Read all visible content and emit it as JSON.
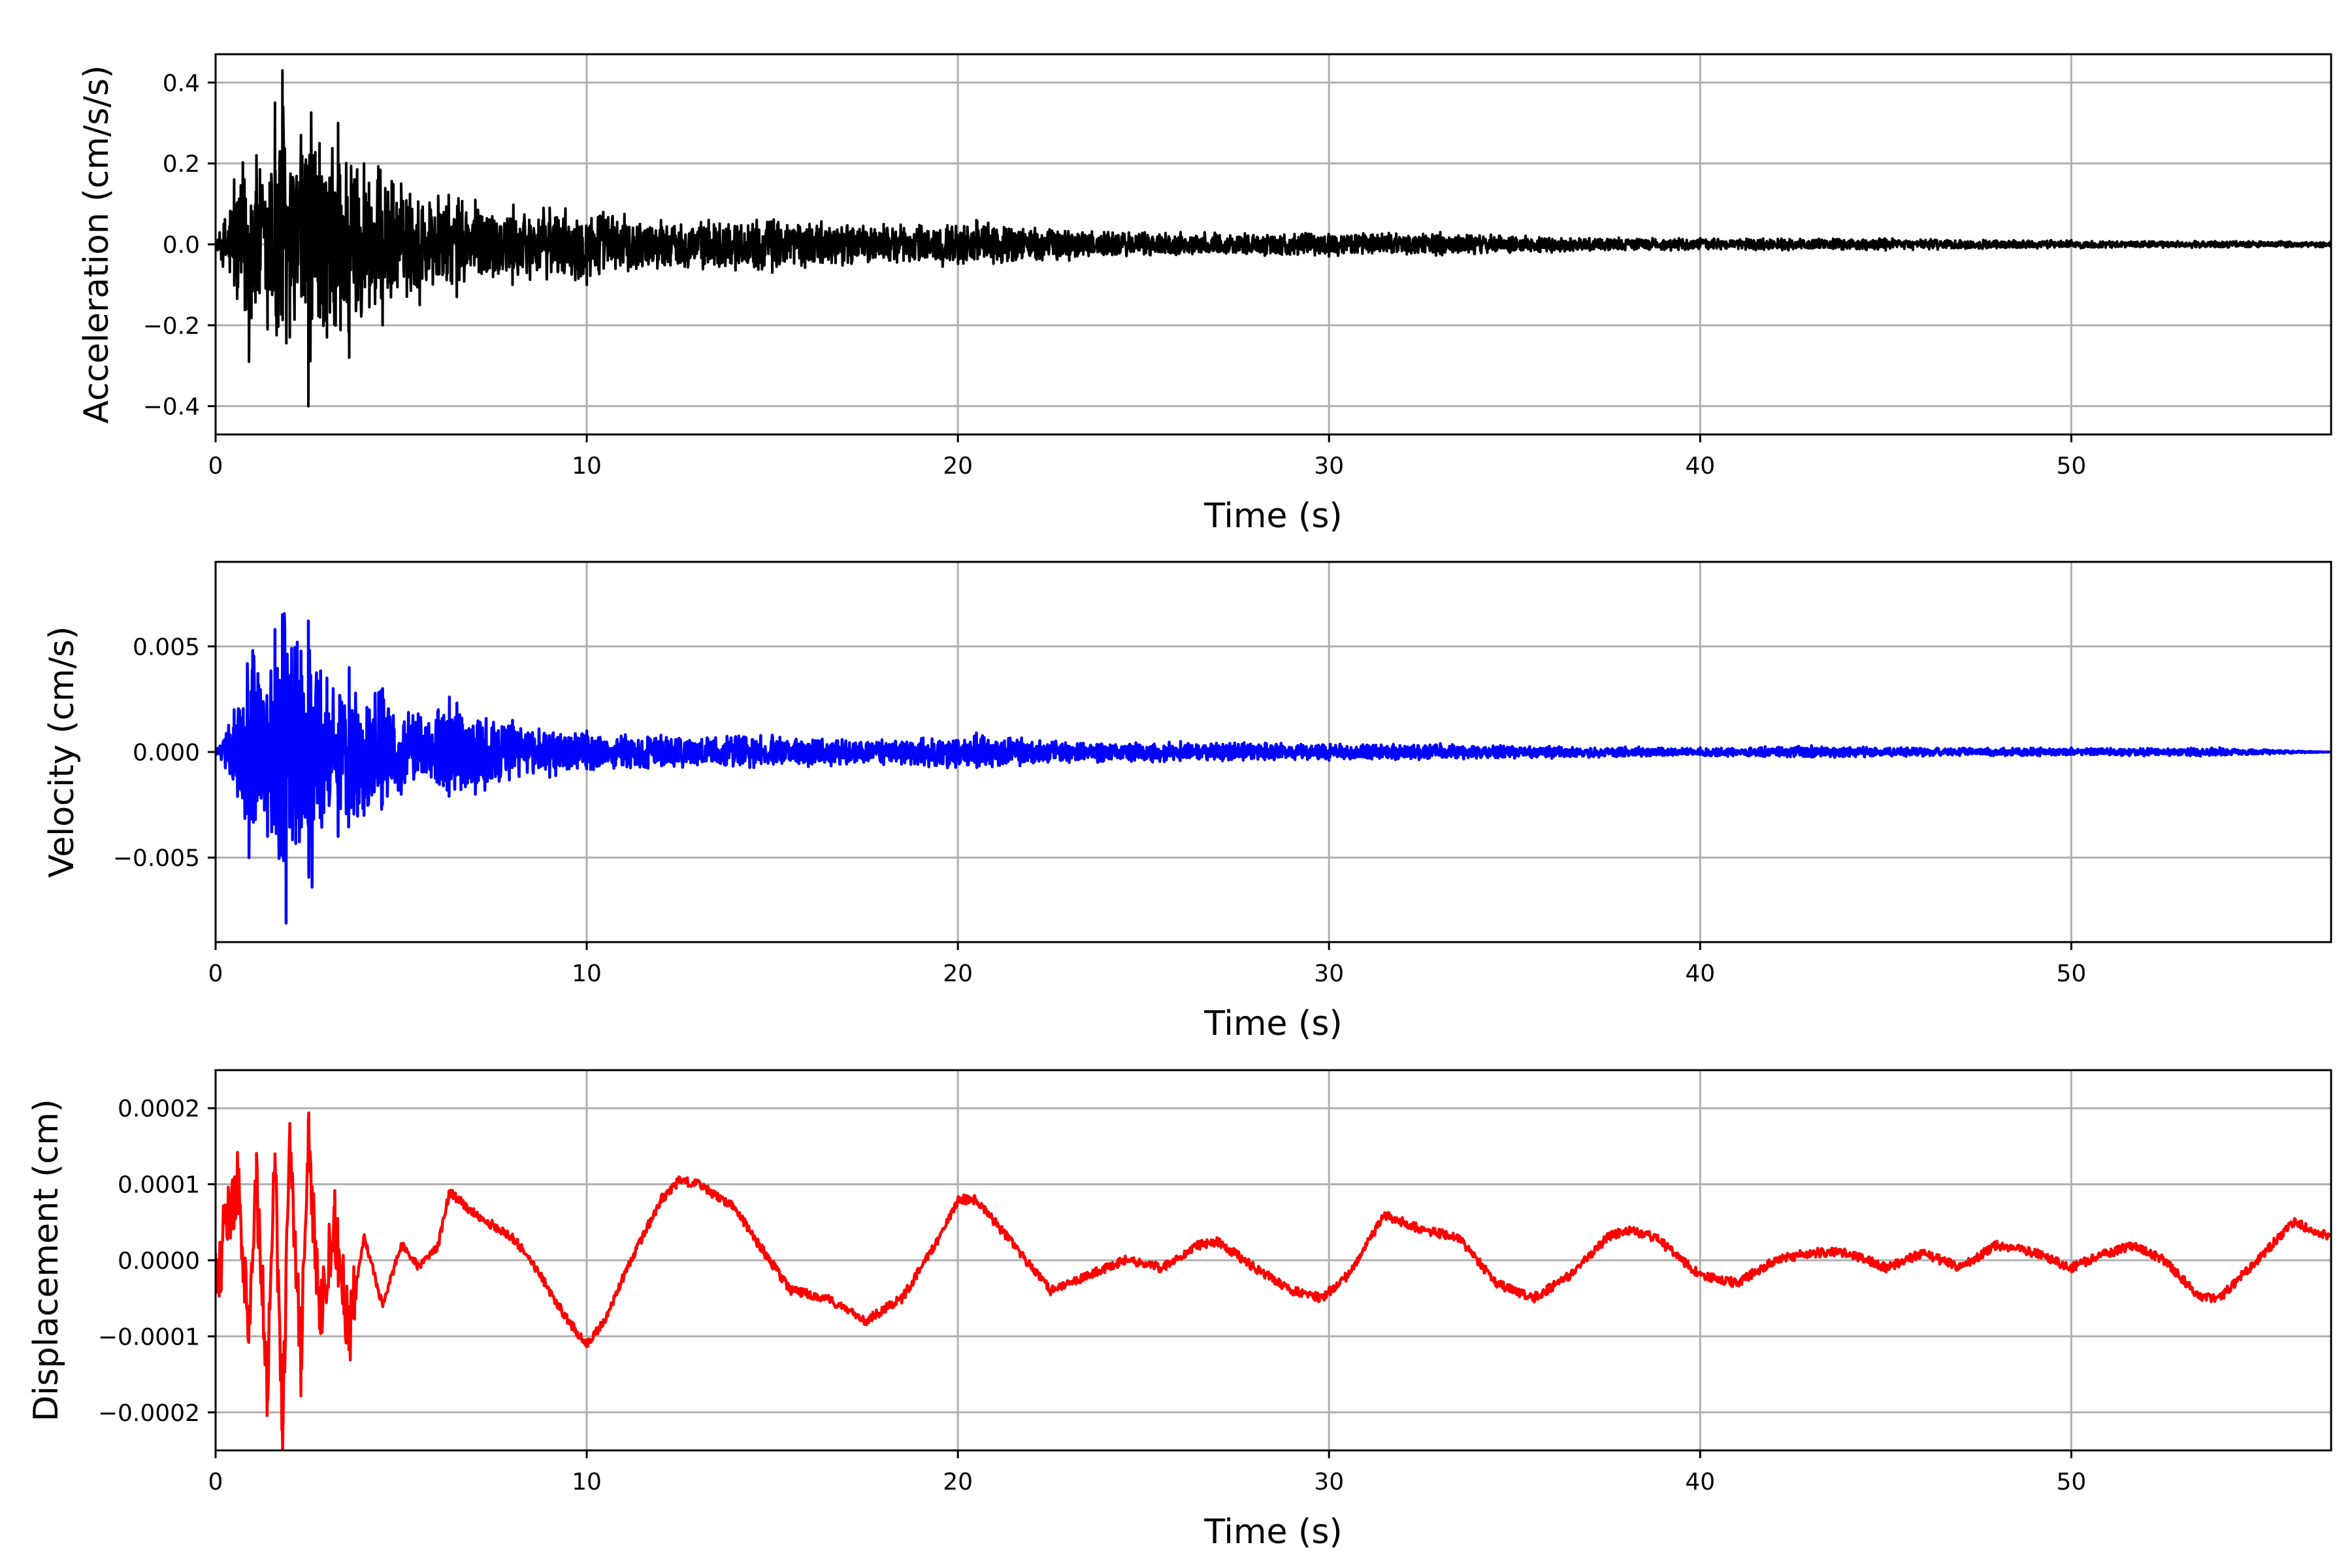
{
  "chart_data": [
    {
      "type": "line",
      "title": "",
      "xlabel": "Time (s)",
      "ylabel": "Acceleration (cm/s/s)",
      "xlim": [
        0,
        57
      ],
      "ylim": [
        -0.47,
        0.47
      ],
      "xticks": [
        0,
        10,
        20,
        30,
        40,
        50
      ],
      "xtick_labels": [
        "0",
        "10",
        "20",
        "30",
        "40",
        "50"
      ],
      "yticks": [
        -0.4,
        -0.2,
        0.0,
        0.2,
        0.4
      ],
      "ytick_labels": [
        "−0.4",
        "−0.2",
        "0.0",
        "0.2",
        "0.4"
      ],
      "grid": true,
      "color": "#000000",
      "series": [
        {
          "x": [
            0,
            0.5,
            0.9,
            1.1,
            1.4,
            1.6,
            1.8,
            2.0,
            2.3,
            2.5,
            2.8,
            3.0,
            3.3,
            3.6,
            4.0,
            4.5,
            5.0,
            5.5,
            6.0,
            6.5,
            7.0,
            8.0,
            9.0,
            10.0,
            12.0,
            15.0,
            18.0,
            20.5,
            23.0,
            26.0,
            30.0,
            33.0,
            36.0,
            40.0,
            45.0,
            50.0,
            57.0
          ],
          "y": [
            0,
            0.16,
            -0.29,
            0.22,
            -0.21,
            0.35,
            0.43,
            -0.23,
            0.27,
            -0.4,
            0.25,
            -0.23,
            0.3,
            -0.28,
            0.2,
            -0.2,
            0.15,
            -0.15,
            0.12,
            -0.13,
            0.11,
            -0.1,
            0.09,
            -0.1,
            0.06,
            -0.07,
            0.05,
            0.06,
            -0.04,
            0.03,
            -0.03,
            0.03,
            -0.02,
            0.015,
            -0.015,
            0.01,
            -0.008
          ]
        }
      ]
    },
    {
      "type": "line",
      "title": "",
      "xlabel": "Time (s)",
      "ylabel": "Velocity (cm/s)",
      "xlim": [
        0,
        57
      ],
      "ylim": [
        -0.009,
        0.009
      ],
      "xticks": [
        0,
        10,
        20,
        30,
        40,
        50
      ],
      "xtick_labels": [
        "0",
        "10",
        "20",
        "30",
        "40",
        "50"
      ],
      "yticks": [
        -0.005,
        0.0,
        0.005
      ],
      "ytick_labels": [
        "−0.005",
        "0.000",
        "0.005"
      ],
      "grid": true,
      "color": "#0000ff",
      "series": [
        {
          "x": [
            0,
            0.5,
            0.9,
            1.0,
            1.4,
            1.6,
            1.8,
            1.9,
            2.2,
            2.5,
            2.6,
            3.0,
            3.3,
            3.6,
            4.0,
            4.5,
            5.0,
            6.0,
            6.3,
            7.0,
            8.0,
            9.0,
            10.0,
            12.0,
            15.0,
            18.0,
            20.5,
            23.0,
            26.0,
            30.0,
            33.0,
            36.0,
            40.0,
            43.0,
            46.0,
            50.0,
            54.0,
            57.0
          ],
          "y": [
            0,
            0.002,
            -0.005,
            0.0048,
            -0.004,
            0.0058,
            0.0065,
            -0.0081,
            0.0052,
            0.0062,
            -0.0064,
            0.0035,
            -0.004,
            0.004,
            -0.003,
            0.003,
            -0.002,
            0.002,
            0.0026,
            -0.002,
            0.0015,
            -0.0012,
            0.001,
            0.0008,
            0.0008,
            -0.0006,
            0.0009,
            -0.0005,
            0.0005,
            -0.0004,
            0.0004,
            -0.0003,
            0.0002,
            0.0003,
            -0.0002,
            0.0002,
            0.0002,
            0.0
          ]
        }
      ]
    },
    {
      "type": "line",
      "title": "",
      "xlabel": "Time (s)",
      "ylabel": "Displacement (cm)",
      "xlim": [
        0,
        57
      ],
      "ylim": [
        -0.00025,
        0.00025
      ],
      "xticks": [
        0,
        10,
        20,
        30,
        40,
        50
      ],
      "xtick_labels": [
        "0",
        "10",
        "20",
        "30",
        "40",
        "50"
      ],
      "yticks": [
        -0.0002,
        -0.0001,
        0.0,
        0.0001,
        0.0002
      ],
      "ytick_labels": [
        "−0.0002",
        "−0.0001",
        "0.0000",
        "0.0001",
        "0.0002"
      ],
      "grid": true,
      "color": "#ff0000",
      "series": [
        {
          "x": [
            0,
            0.3,
            0.6,
            0.9,
            1.1,
            1.4,
            1.6,
            1.8,
            2.0,
            2.3,
            2.5,
            2.8,
            3.2,
            3.6,
            4.0,
            4.5,
            5.0,
            5.5,
            6.0,
            6.3,
            7.0,
            8.0,
            8.5,
            9.0,
            9.5,
            10.0,
            10.5,
            11.0,
            12.0,
            12.5,
            13.0,
            14.0,
            14.5,
            15.5,
            16.5,
            17.5,
            18.5,
            19.5,
            20.0,
            20.5,
            21.5,
            22.5,
            23.5,
            24.5,
            25.5,
            26.5,
            27.0,
            28.0,
            29.0,
            29.8,
            30.5,
            31.5,
            32.5,
            33.5,
            34.5,
            35.5,
            36.5,
            37.5,
            38.0,
            38.8,
            40.0,
            41.0,
            42.0,
            43.0,
            44.0,
            45.0,
            46.0,
            47.0,
            48.0,
            49.0,
            50.0,
            51.0,
            51.7,
            52.5,
            53.5,
            54.0,
            55.0,
            56.0,
            57.0
          ],
          "y": [
            -2e-05,
            4e-05,
            0.0001,
            -8e-05,
            0.0001,
            -0.00017,
            0.00014,
            -0.000225,
            0.00018,
            -0.00013,
            0.000185,
            -9e-05,
            5e-05,
            -9e-05,
            3e-05,
            -6e-05,
            2e-05,
            -1e-05,
            2e-05,
            9e-05,
            6e-05,
            3e-05,
            0.0,
            -4e-05,
            -8e-05,
            -0.00011,
            -8e-05,
            -2e-05,
            8e-05,
            0.000105,
            0.0001,
            7e-05,
            3e-05,
            -4e-05,
            -5e-05,
            -8e-05,
            -5e-05,
            3e-05,
            8e-05,
            8e-05,
            2e-05,
            -4e-05,
            -2e-05,
            0.0,
            -1e-05,
            2e-05,
            2.5e-05,
            -1e-05,
            -4e-05,
            -5e-05,
            -2e-05,
            6e-05,
            4e-05,
            3e-05,
            -3e-05,
            -5e-05,
            -2e-05,
            3e-05,
            4e-05,
            3e-05,
            -2e-05,
            -3e-05,
            0.0,
            1e-05,
            1e-05,
            -1e-05,
            1e-05,
            -1e-05,
            2e-05,
            1e-05,
            -1e-05,
            1e-05,
            2e-05,
            0.0,
            -5e-05,
            -5e-05,
            0.0,
            5e-05,
            3e-05
          ]
        }
      ]
    }
  ]
}
